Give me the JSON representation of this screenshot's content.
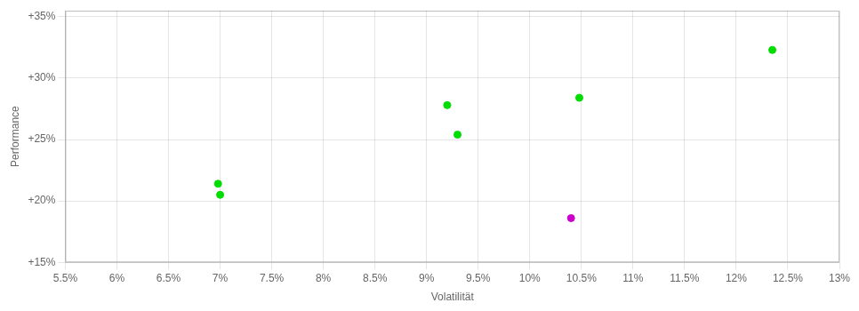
{
  "chart_data": {
    "type": "scatter",
    "xlabel": "Volatilität",
    "ylabel": "Performance",
    "xlim": [
      0.055,
      0.13
    ],
    "ylim": [
      0.15,
      0.355
    ],
    "xticks": [
      {
        "value": 0.055,
        "label": "5.5%"
      },
      {
        "value": 0.06,
        "label": "6%"
      },
      {
        "value": 0.065,
        "label": "6.5%"
      },
      {
        "value": 0.07,
        "label": "7%"
      },
      {
        "value": 0.075,
        "label": "7.5%"
      },
      {
        "value": 0.08,
        "label": "8%"
      },
      {
        "value": 0.085,
        "label": "8.5%"
      },
      {
        "value": 0.09,
        "label": "9%"
      },
      {
        "value": 0.095,
        "label": "9.5%"
      },
      {
        "value": 0.1,
        "label": "10%"
      },
      {
        "value": 0.105,
        "label": "10.5%"
      },
      {
        "value": 0.11,
        "label": "11%"
      },
      {
        "value": 0.115,
        "label": "11.5%"
      },
      {
        "value": 0.12,
        "label": "12%"
      },
      {
        "value": 0.125,
        "label": "12.5%"
      },
      {
        "value": 0.13,
        "label": "13%"
      }
    ],
    "yticks": [
      {
        "value": 0.15,
        "label": "+15%"
      },
      {
        "value": 0.2,
        "label": "+20%"
      },
      {
        "value": 0.25,
        "label": "+25%"
      },
      {
        "value": 0.3,
        "label": "+30%"
      },
      {
        "value": 0.35,
        "label": "+35%"
      }
    ],
    "grid": true,
    "series": [
      {
        "color": "#00dd00",
        "marker": "circle",
        "x": [
          0.0698,
          0.07,
          0.092,
          0.093,
          0.1048,
          0.1235
        ],
        "values": [
          0.214,
          0.205,
          0.278,
          0.254,
          0.284,
          0.323
        ]
      },
      {
        "color": "#cc00cc",
        "marker": "circle",
        "x": [
          0.104
        ],
        "values": [
          0.186
        ]
      }
    ]
  }
}
